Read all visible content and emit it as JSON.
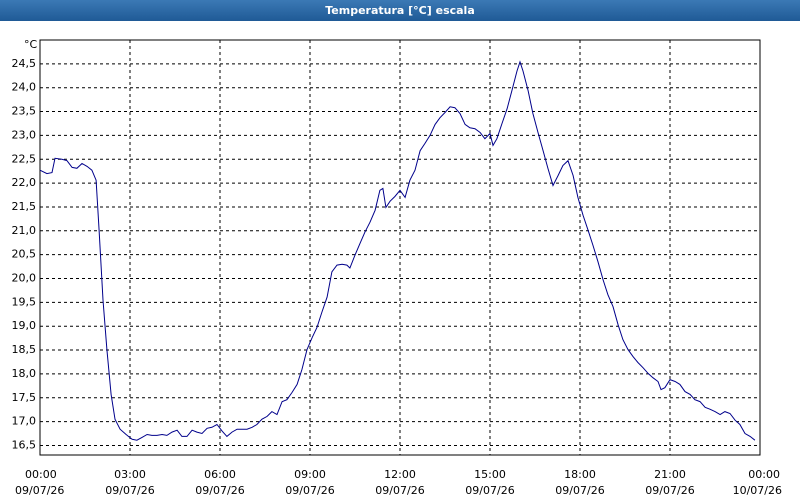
{
  "chart_data": {
    "type": "line",
    "title": "Temperatura [°C] escala",
    "y_unit": "°C",
    "series": [
      {
        "color": "#00008b",
        "x": [
          0,
          0.23,
          0.4,
          0.5,
          0.73,
          0.9,
          1.07,
          1.23,
          1.4,
          1.57,
          1.73,
          1.87,
          1.97,
          2.1,
          2.23,
          2.37,
          2.5,
          2.67,
          2.87,
          3.07,
          3.23,
          3.4,
          3.57,
          3.73,
          3.9,
          4.07,
          4.23,
          4.4,
          4.57,
          4.73,
          4.9,
          5.07,
          5.23,
          5.4,
          5.57,
          5.73,
          5.9,
          6.07,
          6.23,
          6.4,
          6.57,
          6.9,
          7.07,
          7.23,
          7.4,
          7.57,
          7.73,
          7.9,
          8.07,
          8.23,
          8.4,
          8.57,
          8.73,
          8.9,
          9.07,
          9.23,
          9.4,
          9.57,
          9.73,
          9.9,
          10.07,
          10.23,
          10.33,
          10.5,
          10.67,
          10.83,
          11.0,
          11.17,
          11.33,
          11.43,
          11.53,
          11.67,
          11.83,
          12.0,
          12.17,
          12.33,
          12.5,
          12.67,
          12.83,
          13.0,
          13.17,
          13.33,
          13.5,
          13.67,
          13.83,
          14.0,
          14.17,
          14.33,
          14.5,
          14.67,
          14.83,
          15.0,
          15.1,
          15.23,
          15.4,
          15.57,
          15.73,
          15.9,
          16.0,
          16.1,
          16.27,
          16.43,
          16.6,
          16.77,
          16.93,
          17.1,
          17.27,
          17.43,
          17.6,
          17.77,
          17.93,
          18.1,
          18.27,
          18.43,
          18.6,
          18.77,
          18.93,
          19.1,
          19.27,
          19.43,
          19.6,
          19.77,
          19.93,
          20.1,
          20.27,
          20.43,
          20.6,
          20.7,
          20.83,
          21.0,
          21.17,
          21.33,
          21.5,
          21.67,
          21.83,
          22.0,
          22.17,
          22.33,
          22.5,
          22.67,
          22.83,
          23.0,
          23.17,
          23.33,
          23.5,
          23.67,
          23.83
        ],
        "values": [
          22.27,
          22.2,
          22.22,
          22.52,
          22.5,
          22.47,
          22.33,
          22.31,
          22.41,
          22.35,
          22.27,
          22.06,
          21.01,
          19.55,
          18.51,
          17.57,
          17.05,
          16.84,
          16.73,
          16.63,
          16.61,
          16.67,
          16.73,
          16.71,
          16.71,
          16.73,
          16.71,
          16.78,
          16.82,
          16.69,
          16.69,
          16.82,
          16.78,
          16.75,
          16.86,
          16.88,
          16.94,
          16.8,
          16.69,
          16.78,
          16.84,
          16.84,
          16.88,
          16.94,
          17.05,
          17.11,
          17.21,
          17.15,
          17.42,
          17.46,
          17.61,
          17.78,
          18.09,
          18.51,
          18.76,
          18.97,
          19.3,
          19.61,
          20.14,
          20.28,
          20.3,
          20.28,
          20.22,
          20.49,
          20.74,
          20.97,
          21.18,
          21.43,
          21.85,
          21.89,
          21.49,
          21.62,
          21.72,
          21.85,
          21.7,
          22.06,
          22.27,
          22.68,
          22.83,
          23.0,
          23.23,
          23.37,
          23.48,
          23.6,
          23.58,
          23.46,
          23.23,
          23.16,
          23.14,
          23.06,
          22.93,
          23.04,
          22.79,
          22.93,
          23.25,
          23.56,
          23.94,
          24.35,
          24.54,
          24.35,
          23.94,
          23.46,
          23.06,
          22.68,
          22.31,
          21.95,
          22.16,
          22.37,
          22.47,
          22.16,
          21.7,
          21.33,
          21.01,
          20.7,
          20.35,
          19.97,
          19.66,
          19.41,
          19.03,
          18.72,
          18.51,
          18.36,
          18.24,
          18.13,
          18.01,
          17.92,
          17.84,
          17.67,
          17.71,
          17.88,
          17.84,
          17.78,
          17.63,
          17.57,
          17.46,
          17.42,
          17.3,
          17.26,
          17.21,
          17.15,
          17.21,
          17.17,
          17.03,
          16.94,
          16.75,
          16.69,
          16.61
        ]
      }
    ],
    "xlim": [
      0,
      24
    ],
    "xticks": [
      {
        "value": 0,
        "label": "00:00",
        "date": "09/07/26"
      },
      {
        "value": 3,
        "label": "03:00",
        "date": "09/07/26"
      },
      {
        "value": 6,
        "label": "06:00",
        "date": "09/07/26"
      },
      {
        "value": 9,
        "label": "09:00",
        "date": "09/07/26"
      },
      {
        "value": 12,
        "label": "12:00",
        "date": "09/07/26"
      },
      {
        "value": 15,
        "label": "15:00",
        "date": "09/07/26"
      },
      {
        "value": 18,
        "label": "18:00",
        "date": "09/07/26"
      },
      {
        "value": 21,
        "label": "21:00",
        "date": "09/07/26"
      },
      {
        "value": 24,
        "label": "00:00",
        "date": "10/07/26"
      }
    ],
    "ylim": [
      16.3,
      25.0
    ],
    "yticks": [
      {
        "value": 16.5,
        "label": "16,5"
      },
      {
        "value": 17,
        "label": "17,0"
      },
      {
        "value": 17.5,
        "label": "17,5"
      },
      {
        "value": 18,
        "label": "18,0"
      },
      {
        "value": 18.5,
        "label": "18,5"
      },
      {
        "value": 19,
        "label": "19,0"
      },
      {
        "value": 19.5,
        "label": "19,5"
      },
      {
        "value": 20,
        "label": "20,0"
      },
      {
        "value": 20.5,
        "label": "20,5"
      },
      {
        "value": 21,
        "label": "21,0"
      },
      {
        "value": 21.5,
        "label": "21,5"
      },
      {
        "value": 22,
        "label": "22,0"
      },
      {
        "value": 22.5,
        "label": "22,5"
      },
      {
        "value": 23,
        "label": "23,0"
      },
      {
        "value": 23.5,
        "label": "23,5"
      },
      {
        "value": 24,
        "label": "24,0"
      },
      {
        "value": 24.5,
        "label": "24,5"
      }
    ],
    "grid": true
  }
}
